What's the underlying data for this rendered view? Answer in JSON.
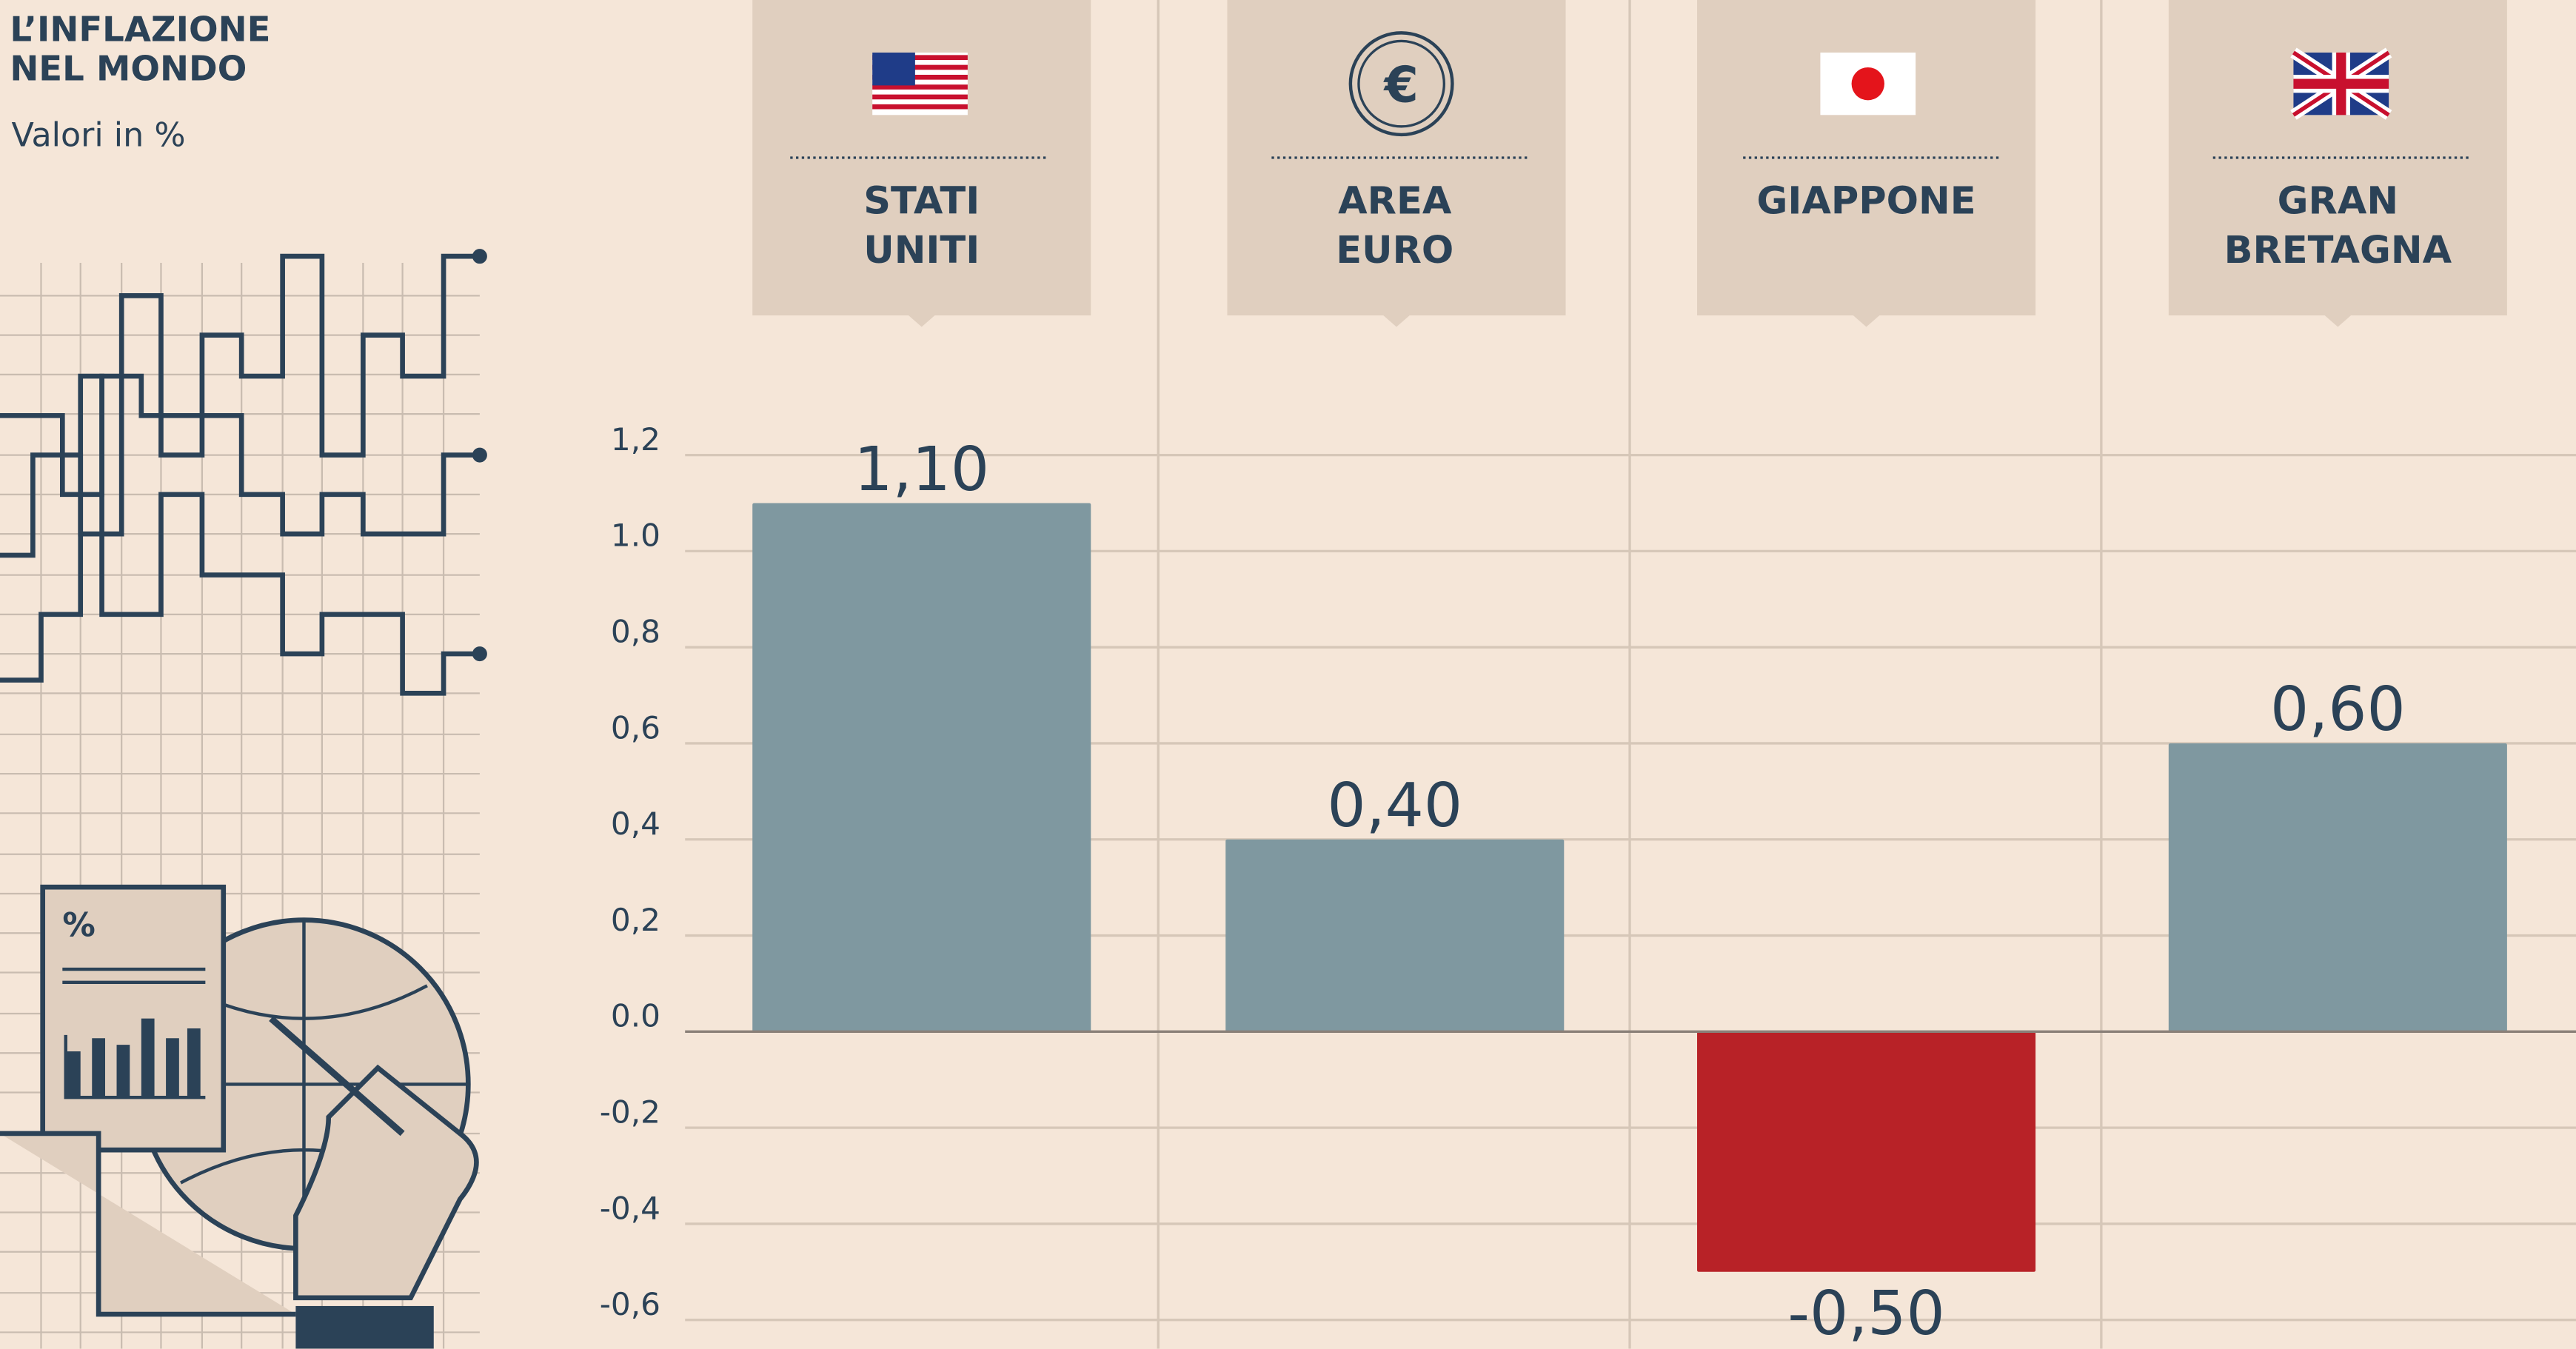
{
  "chart_data": {
    "type": "bar",
    "title": "L’INFLAZIONE\nNEL MONDO",
    "subtitle": "Valori in %",
    "categories": [
      "STATI\nUNITI",
      "AREA\nEURO",
      "GIAPPONE",
      "GRAN\nBRETAGNA"
    ],
    "values": [
      1.1,
      0.4,
      -0.5,
      0.6
    ],
    "value_labels": [
      "1,10",
      "0,40",
      "-0,50",
      "0,60"
    ],
    "colors": [
      "#7f98a0",
      "#7f98a0",
      "#b82227",
      "#7f98a0"
    ],
    "ylim": [
      -0.66,
      1.2
    ],
    "yticks": [
      {
        "value": 1.2,
        "label": "1,2"
      },
      {
        "value": 1.0,
        "label": "1.0"
      },
      {
        "value": 0.8,
        "label": "0,8"
      },
      {
        "value": 0.6,
        "label": "0,6"
      },
      {
        "value": 0.4,
        "label": "0,4"
      },
      {
        "value": 0.2,
        "label": "0,2"
      },
      {
        "value": 0,
        "label": "0.0"
      },
      {
        "value": -0.2,
        "label": "-0,2"
      },
      {
        "value": -0.4,
        "label": "-0,4"
      },
      {
        "value": -0.6,
        "label": "-0,6"
      }
    ],
    "grid": true
  }
}
